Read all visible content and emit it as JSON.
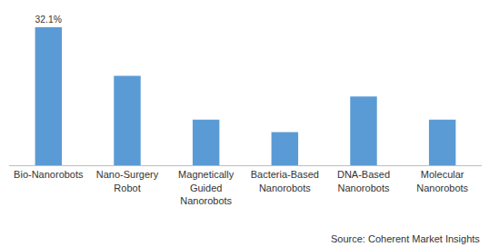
{
  "chart_data": {
    "type": "bar",
    "categories": [
      "Bio-Nanorobots",
      "Nano-Surgery Robot",
      "Magnetically Guided Nanorobots",
      "Bacteria-Based Nanorobots",
      "DNA-Based Nanorobots",
      "Molecular Nanorobots"
    ],
    "values": [
      32.1,
      20.8,
      10.6,
      7.7,
      16.0,
      10.6
    ],
    "value_labels": [
      "32.1%",
      null,
      null,
      null,
      null,
      null
    ],
    "data_labels": true,
    "color": "#5b9bd5",
    "ylim": [
      0,
      32.1
    ],
    "tick_labels": "x",
    "grid": false,
    "annotation": "Source: Coherent Market Insights"
  }
}
